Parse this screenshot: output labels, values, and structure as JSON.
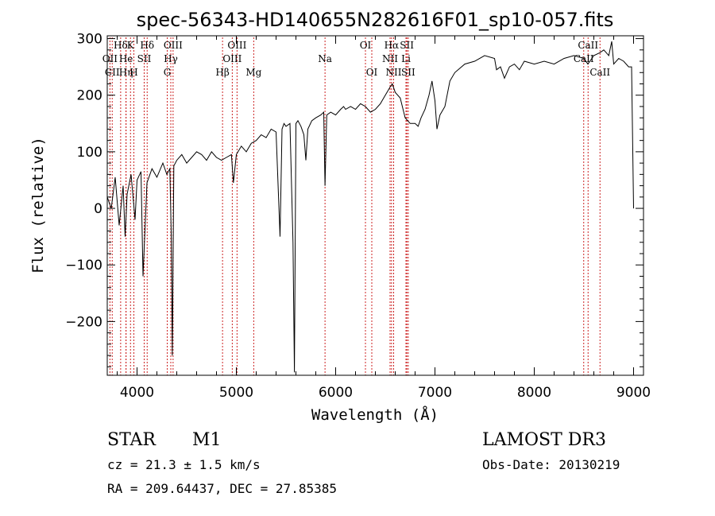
{
  "chart_data": {
    "type": "line",
    "title": "spec-56343-HD140655N282616F01_sp10-057.fits",
    "xlabel": "Wavelength (Å)",
    "ylabel": "Flux (relative)",
    "xlim": [
      3700,
      9100
    ],
    "ylim": [
      -295,
      305
    ],
    "xticks": [
      4000,
      5000,
      6000,
      7000,
      8000,
      9000
    ],
    "yticks": [
      -200,
      -100,
      0,
      100,
      200,
      300
    ],
    "grid": false,
    "series": [
      {
        "color": "#000000",
        "x": [
          3700,
          3740,
          3780,
          3820,
          3860,
          3880,
          3900,
          3940,
          3980,
          4000,
          4040,
          4060,
          4100,
          4150,
          4200,
          4260,
          4300,
          4330,
          4345,
          4355,
          4370,
          4400,
          4450,
          4500,
          4550,
          4600,
          4650,
          4700,
          4750,
          4800,
          4850,
          4900,
          4950,
          4970,
          5000,
          5050,
          5100,
          5150,
          5200,
          5250,
          5300,
          5350,
          5400,
          5440,
          5460,
          5480,
          5500,
          5540,
          5570,
          5585,
          5600,
          5620,
          5650,
          5680,
          5700,
          5720,
          5760,
          5800,
          5850,
          5880,
          5893,
          5910,
          5950,
          6000,
          6050,
          6080,
          6100,
          6150,
          6200,
          6250,
          6300,
          6350,
          6400,
          6450,
          6500,
          6550,
          6570,
          6600,
          6650,
          6700,
          6750,
          6800,
          6830,
          6860,
          6900,
          6940,
          6970,
          7000,
          7020,
          7050,
          7100,
          7150,
          7200,
          7300,
          7400,
          7500,
          7600,
          7620,
          7660,
          7700,
          7750,
          7800,
          7850,
          7900,
          8000,
          8100,
          8200,
          8300,
          8400,
          8500,
          8540,
          8600,
          8660,
          8700,
          8750,
          8780,
          8800,
          8850,
          8900,
          8950,
          8980,
          9000
        ],
        "y": [
          20,
          0,
          55,
          -30,
          40,
          -50,
          25,
          60,
          -20,
          50,
          65,
          -120,
          45,
          70,
          55,
          80,
          60,
          70,
          -50,
          -260,
          75,
          85,
          95,
          80,
          90,
          100,
          95,
          85,
          100,
          90,
          85,
          90,
          95,
          45,
          95,
          110,
          100,
          115,
          120,
          130,
          125,
          140,
          135,
          -50,
          140,
          150,
          145,
          150,
          -60,
          -290,
          150,
          155,
          145,
          130,
          85,
          140,
          155,
          160,
          165,
          170,
          40,
          165,
          170,
          165,
          175,
          180,
          175,
          180,
          175,
          185,
          180,
          170,
          175,
          185,
          200,
          215,
          220,
          205,
          195,
          160,
          150,
          150,
          145,
          160,
          175,
          200,
          225,
          190,
          140,
          165,
          180,
          225,
          240,
          255,
          260,
          270,
          265,
          245,
          250,
          230,
          250,
          255,
          245,
          260,
          255,
          260,
          255,
          265,
          270,
          265,
          255,
          270,
          275,
          280,
          270,
          295,
          255,
          265,
          260,
          250,
          250,
          0
        ]
      }
    ],
    "emission_lines": [
      {
        "label": "Hδ",
        "x": 3835,
        "row": 0
      },
      {
        "label": "OII",
        "x": 3727,
        "row": 1
      },
      {
        "label": "CII",
        "x": 3750,
        "row": 2
      },
      {
        "label": "He",
        "x": 3889,
        "row": 1
      },
      {
        "label": "K",
        "x": 3934,
        "row": 0
      },
      {
        "label": "Hη",
        "x": 3889,
        "row": 2
      },
      {
        "label": "H",
        "x": 3968,
        "row": 2
      },
      {
        "label": "SII",
        "x": 4072,
        "row": 1
      },
      {
        "label": "Hδ",
        "x": 4102,
        "row": 0
      },
      {
        "label": "OIII",
        "x": 4363,
        "row": 0
      },
      {
        "label": "Hγ",
        "x": 4340,
        "row": 1
      },
      {
        "label": "G",
        "x": 4304,
        "row": 2
      },
      {
        "label": "Hβ",
        "x": 4861,
        "row": 2
      },
      {
        "label": "OIII",
        "x": 5007,
        "row": 0
      },
      {
        "label": "OIII",
        "x": 4959,
        "row": 1
      },
      {
        "label": "Mg",
        "x": 5175,
        "row": 2
      },
      {
        "label": "Na",
        "x": 5893,
        "row": 1
      },
      {
        "label": "OI",
        "x": 6300,
        "row": 0
      },
      {
        "label": "OI",
        "x": 6364,
        "row": 2
      },
      {
        "label": "Hα",
        "x": 6563,
        "row": 0
      },
      {
        "label": "NII",
        "x": 6548,
        "row": 1
      },
      {
        "label": "NII",
        "x": 6584,
        "row": 2
      },
      {
        "label": "SII",
        "x": 6717,
        "row": 0
      },
      {
        "label": "Li",
        "x": 6708,
        "row": 1
      },
      {
        "label": "SII",
        "x": 6731,
        "row": 2
      },
      {
        "label": "CaII",
        "x": 8542,
        "row": 0
      },
      {
        "label": "CaII",
        "x": 8498,
        "row": 1
      },
      {
        "label": "CaII",
        "x": 8662,
        "row": 2
      }
    ]
  },
  "info": {
    "object_type": "STAR",
    "subclass": "M1",
    "survey": "LAMOST DR3",
    "cz": "cz = 21.3 ± 1.5 km/s",
    "obs_date": "Obs-Date: 20130219",
    "coords": "RA = 209.64437, DEC =  27.85385"
  }
}
